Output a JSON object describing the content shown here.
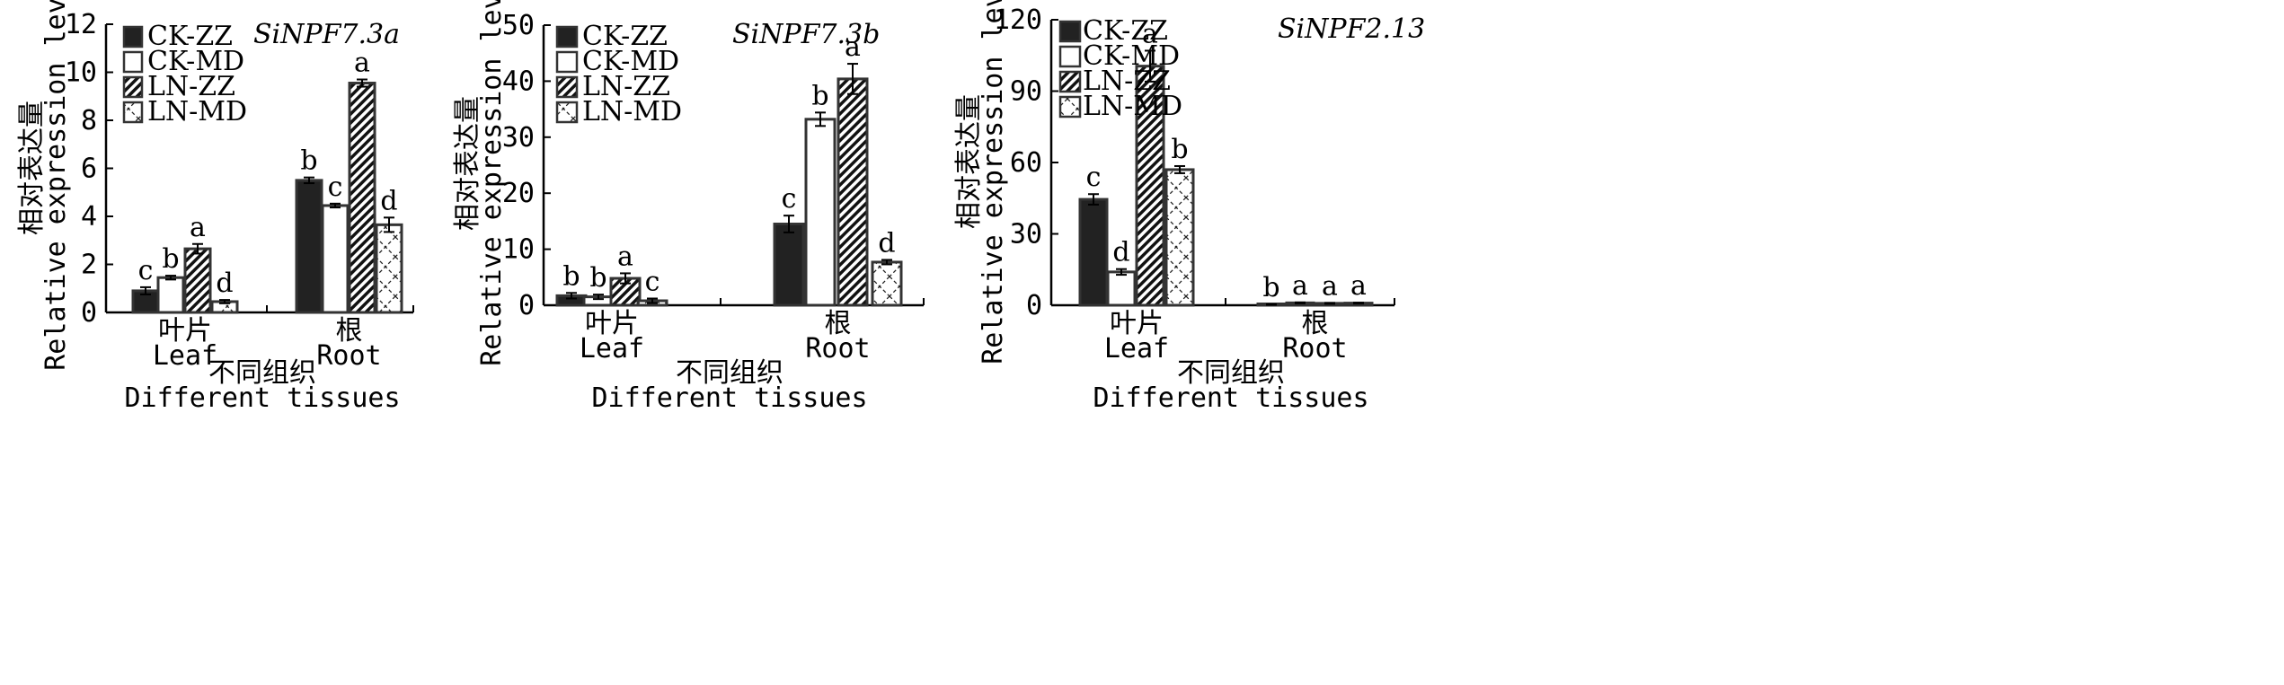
{
  "figure": {
    "legend_labels": [
      "CK-ZZ",
      "CK-MD",
      "LN-ZZ",
      "LN-MD"
    ],
    "series_colors": {
      "CK-ZZ": "#222222",
      "CK-MD": "#ffffff",
      "LN-ZZ": "hatch-dense",
      "LN-MD": "hatch-cross"
    }
  },
  "chart_data": [
    {
      "type": "bar",
      "title": "SiNPF7.3a",
      "ylabel_cn": "相对表达量",
      "ylabel_en": "Relative expression level",
      "xlabel_cn": "不同组织",
      "xlabel_en": "Different tissues",
      "categories": [
        {
          "cn": "叶片",
          "en": "Leaf"
        },
        {
          "cn": "根",
          "en": "Root"
        }
      ],
      "ylim": [
        0,
        12
      ],
      "yticks": [
        0,
        2,
        4,
        6,
        8,
        10,
        12
      ],
      "legend_position": "top-left",
      "series": [
        {
          "name": "CK-ZZ",
          "values": [
            0.9,
            5.5
          ],
          "errors": [
            0.15,
            0.12
          ],
          "letters": [
            "c",
            "b"
          ]
        },
        {
          "name": "CK-MD",
          "values": [
            1.45,
            4.45
          ],
          "errors": [
            0.08,
            0.08
          ],
          "letters": [
            "b",
            "c"
          ]
        },
        {
          "name": "LN-ZZ",
          "values": [
            2.65,
            9.55
          ],
          "errors": [
            0.2,
            0.15
          ],
          "letters": [
            "a",
            "a"
          ]
        },
        {
          "name": "LN-MD",
          "values": [
            0.45,
            3.65
          ],
          "errors": [
            0.07,
            0.3
          ],
          "letters": [
            "d",
            "d"
          ]
        }
      ]
    },
    {
      "type": "bar",
      "title": "SiNPF7.3b",
      "ylabel_cn": "相对表达量",
      "ylabel_en": "Relative expression level",
      "xlabel_cn": "不同组织",
      "xlabel_en": "Different tissues",
      "categories": [
        {
          "cn": "叶片",
          "en": "Leaf"
        },
        {
          "cn": "根",
          "en": "Root"
        }
      ],
      "ylim": [
        0,
        50
      ],
      "yticks": [
        0,
        10,
        20,
        30,
        40,
        50
      ],
      "legend_position": "top-left",
      "series": [
        {
          "name": "CK-ZZ",
          "values": [
            1.7,
            14.5
          ],
          "errors": [
            0.5,
            1.5
          ],
          "letters": [
            "b",
            "c"
          ]
        },
        {
          "name": "CK-MD",
          "values": [
            1.5,
            33.2
          ],
          "errors": [
            0.4,
            1.2
          ],
          "letters": [
            "b",
            "b"
          ]
        },
        {
          "name": "LN-ZZ",
          "values": [
            4.8,
            40.4
          ],
          "errors": [
            0.9,
            2.7
          ],
          "letters": [
            "a",
            "a"
          ]
        },
        {
          "name": "LN-MD",
          "values": [
            0.8,
            7.7
          ],
          "errors": [
            0.4,
            0.4
          ],
          "letters": [
            "c",
            "d"
          ]
        }
      ]
    },
    {
      "type": "bar",
      "title": "SiNPF2.13",
      "ylabel_cn": "相对表达量",
      "ylabel_en": "Relative expression level",
      "xlabel_cn": "不同组织",
      "xlabel_en": "Different tissues",
      "categories": [
        {
          "cn": "叶片",
          "en": "Leaf"
        },
        {
          "cn": "根",
          "en": "Root"
        }
      ],
      "ylim": [
        0,
        120
      ],
      "yticks": [
        0,
        30,
        60,
        90,
        120
      ],
      "legend_position": "top-left",
      "series": [
        {
          "name": "CK-ZZ",
          "values": [
            44.5,
            0.3
          ],
          "errors": [
            2.2,
            0.1
          ],
          "letters": [
            "c",
            "b"
          ]
        },
        {
          "name": "CK-MD",
          "values": [
            14.0,
            1.0
          ],
          "errors": [
            1.2,
            0.2
          ],
          "letters": [
            "d",
            "a"
          ]
        },
        {
          "name": "LN-ZZ",
          "values": [
            100.5,
            0.8
          ],
          "errors": [
            6.5,
            0.2
          ],
          "letters": [
            "a",
            "a"
          ]
        },
        {
          "name": "LN-MD",
          "values": [
            57.0,
            0.9
          ],
          "errors": [
            1.5,
            0.2
          ],
          "letters": [
            "b",
            "a"
          ]
        }
      ]
    }
  ]
}
